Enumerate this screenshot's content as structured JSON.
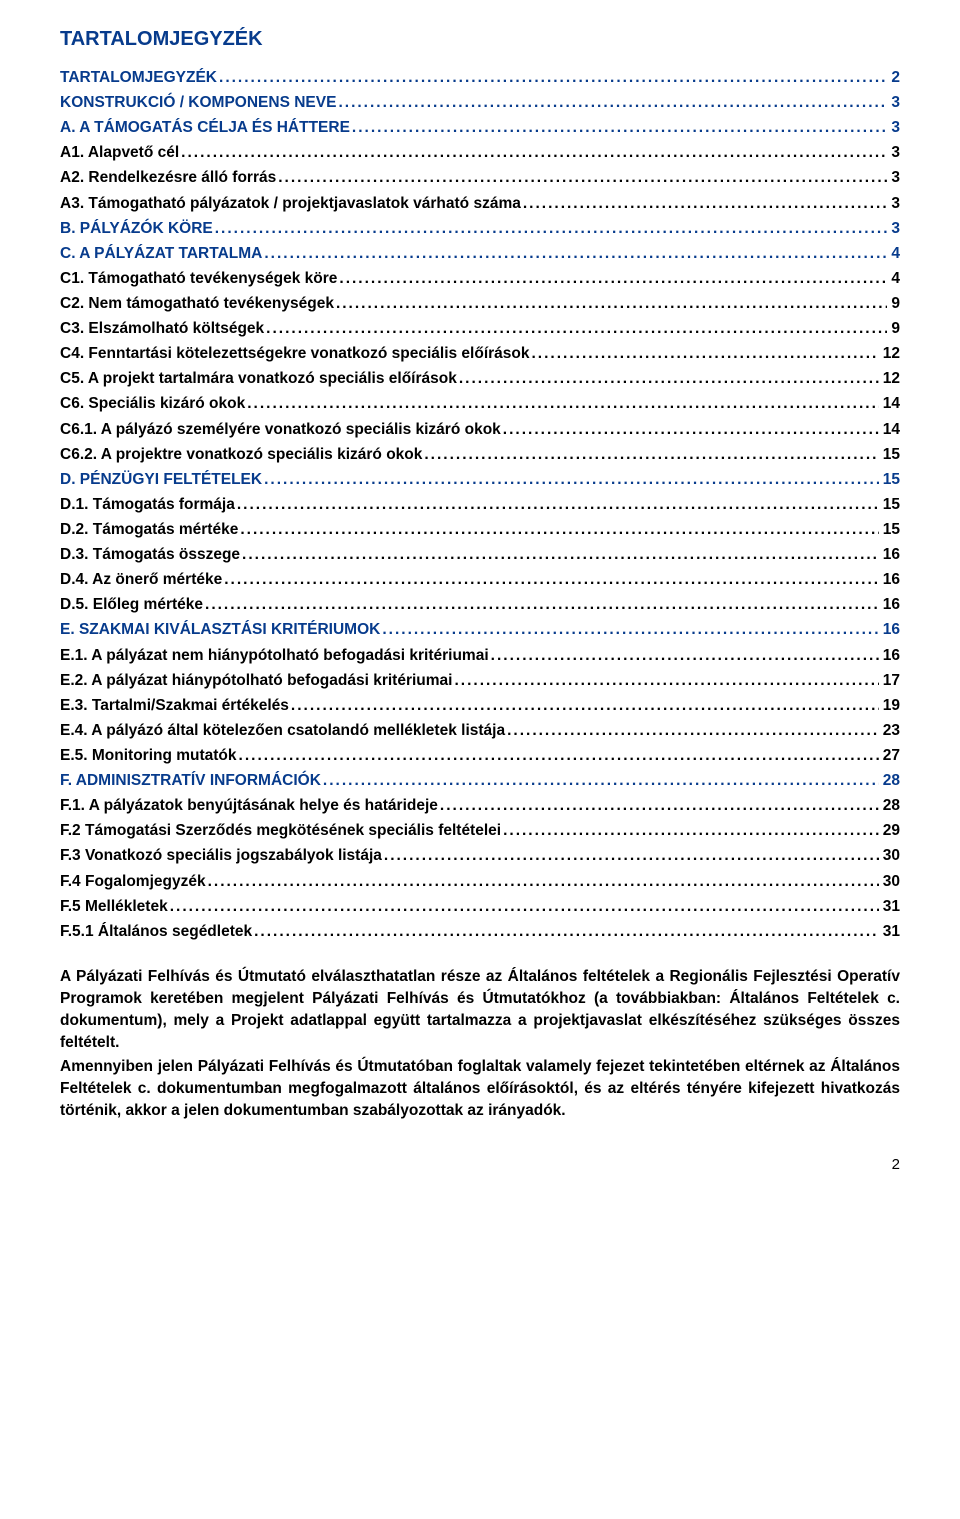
{
  "title": "TARTALOMJEGYZÉK",
  "colors": {
    "heading": "#073b8c",
    "body": "#000000",
    "background": "#ffffff"
  },
  "toc": [
    {
      "level": 1,
      "label": "TARTALOMJEGYZÉK",
      "page": "2"
    },
    {
      "level": 1,
      "label": "KONSTRUKCIÓ / KOMPONENS NEVE",
      "page": "3"
    },
    {
      "level": 1,
      "label": "A. A TÁMOGATÁS CÉLJA ÉS HÁTTERE",
      "page": "3"
    },
    {
      "level": 2,
      "label": "A1. Alapvető cél",
      "page": "3"
    },
    {
      "level": 2,
      "label": "A2. Rendelkezésre álló forrás",
      "page": "3"
    },
    {
      "level": 2,
      "label": "A3. Támogatható pályázatok / projektjavaslatok várható száma",
      "page": "3"
    },
    {
      "level": 1,
      "label": "B. PÁLYÁZÓK KÖRE",
      "page": "3"
    },
    {
      "level": 1,
      "label": "C.  A PÁLYÁZAT TARTALMA",
      "page": "4"
    },
    {
      "level": 2,
      "label": "C1. Támogatható tevékenységek köre",
      "page": "4"
    },
    {
      "level": 2,
      "label": "C2. Nem támogatható tevékenységek",
      "page": "9"
    },
    {
      "level": 2,
      "label": "C3. Elszámolható költségek",
      "page": "9"
    },
    {
      "level": 2,
      "label": "C4. Fenntartási kötelezettségekre vonatkozó speciális előírások",
      "page": "12"
    },
    {
      "level": 2,
      "label": "C5. A projekt tartalmára vonatkozó speciális előírások",
      "page": "12"
    },
    {
      "level": 2,
      "label": "C6. Speciális kizáró okok",
      "page": "14"
    },
    {
      "level": 2,
      "label": "C6.1. A pályázó személyére vonatkozó speciális kizáró okok",
      "page": "14"
    },
    {
      "level": 2,
      "label": "C6.2. A projektre vonatkozó speciális kizáró okok",
      "page": "15"
    },
    {
      "level": 1,
      "label": "D.   PÉNZÜGYI FELTÉTELEK",
      "page": "15"
    },
    {
      "level": 2,
      "label": "D.1. Támogatás formája",
      "page": "15"
    },
    {
      "level": 2,
      "label": "D.2. Támogatás mértéke",
      "page": "15"
    },
    {
      "level": 2,
      "label": "D.3. Támogatás összege",
      "page": "16"
    },
    {
      "level": 2,
      "label": "D.4. Az önerő mértéke",
      "page": "16"
    },
    {
      "level": 2,
      "label": "D.5. Előleg mértéke",
      "page": "16"
    },
    {
      "level": 1,
      "label": "E. SZAKMAI KIVÁLASZTÁSI KRITÉRIUMOK",
      "page": "16"
    },
    {
      "level": 2,
      "label": "E.1. A pályázat nem hiánypótolható befogadási kritériumai",
      "page": "16"
    },
    {
      "level": 2,
      "label": "E.2. A pályázat hiánypótolható befogadási kritériumai",
      "page": "17"
    },
    {
      "level": 2,
      "label": "E.3. Tartalmi/Szakmai értékelés",
      "page": "19"
    },
    {
      "level": 2,
      "label": "E.4. A pályázó által kötelezően csatolandó mellékletek listája",
      "page": "23"
    },
    {
      "level": 2,
      "label": "E.5. Monitoring mutatók",
      "page": "27"
    },
    {
      "level": 1,
      "label": "F. ADMINISZTRATÍV INFORMÁCIÓK",
      "page": "28"
    },
    {
      "level": 2,
      "label": "F.1. A pályázatok benyújtásának helye és határideje",
      "page": "28"
    },
    {
      "level": 2,
      "label": "F.2 Támogatási Szerződés megkötésének speciális feltételei",
      "page": "29"
    },
    {
      "level": 2,
      "label": "F.3  Vonatkozó speciális jogszabályok listája",
      "page": "30"
    },
    {
      "level": 2,
      "label": "F.4 Fogalomjegyzék",
      "page": "30"
    },
    {
      "level": 2,
      "label": "F.5 Mellékletek",
      "page": "31"
    },
    {
      "level": 2,
      "label": "F.5.1 Általános segédletek",
      "page": "31"
    }
  ],
  "paragraphs": [
    "A Pályázati Felhívás és Útmutató elválaszthatatlan része az Általános feltételek a Regionális Fejlesztési Operatív Programok keretében megjelent Pályázati Felhívás és Útmutatókhoz (a továbbiakban: Általános Feltételek c. dokumentum), mely a Projekt adatlappal együtt tartalmazza a projektjavaslat elkészítéséhez szükséges összes feltételt.",
    "Amennyiben jelen Pályázati Felhívás és Útmutatóban foglaltak valamely fejezet tekintetében eltérnek az Általános Feltételek c. dokumentumban megfogalmazott általános előírásoktól, és az eltérés tényére kifejezett hivatkozás történik, akkor a jelen dokumentumban szabályozottak az irányadók."
  ],
  "page_number": "2"
}
